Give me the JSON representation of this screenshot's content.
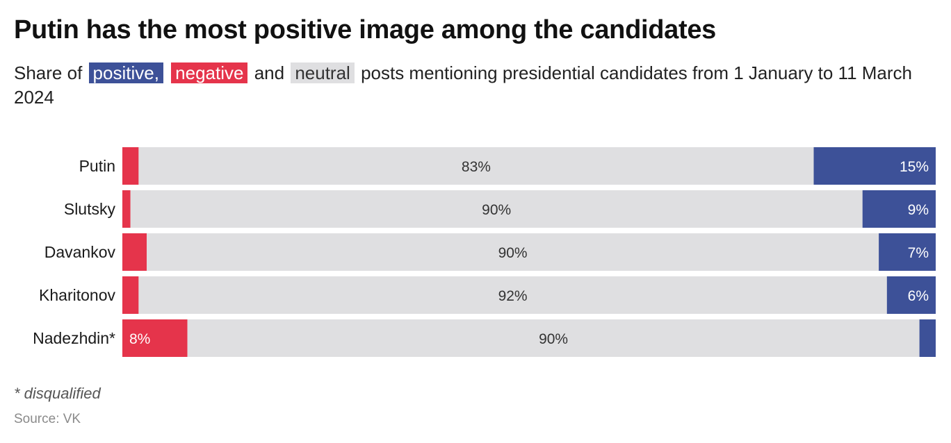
{
  "title": "Putin has the most positive image among the candidates",
  "subtitle": {
    "prefix": "Share of",
    "positive": "positive,",
    "negative": "negative",
    "mid": "and",
    "neutral": "neutral",
    "suffix": "posts mentioning presidential candidates from 1 January to 11 March 2024"
  },
  "note": "* disqualified",
  "source": "Source: VK",
  "colors": {
    "negative": "#e5344b",
    "neutral": "#dfdfe1",
    "positive": "#3d5198"
  },
  "chart_data": {
    "type": "bar",
    "orientation": "horizontal",
    "stacked": true,
    "normalized_to": 100,
    "categories": [
      "Putin",
      "Slutsky",
      "Davankov",
      "Kharitonov",
      "Nadezhdin*"
    ],
    "series": [
      {
        "name": "negative",
        "values": [
          2,
          1,
          3,
          2,
          8
        ],
        "labels": [
          "",
          "",
          "",
          "",
          "8%"
        ]
      },
      {
        "name": "neutral",
        "values": [
          83,
          90,
          90,
          92,
          90
        ],
        "labels": [
          "83%",
          "90%",
          "90%",
          "92%",
          "90%"
        ]
      },
      {
        "name": "positive",
        "values": [
          15,
          9,
          7,
          6,
          2
        ],
        "labels": [
          "15%",
          "9%",
          "7%",
          "6%",
          ""
        ]
      }
    ],
    "legend": "inline in subtitle",
    "grid": false
  }
}
